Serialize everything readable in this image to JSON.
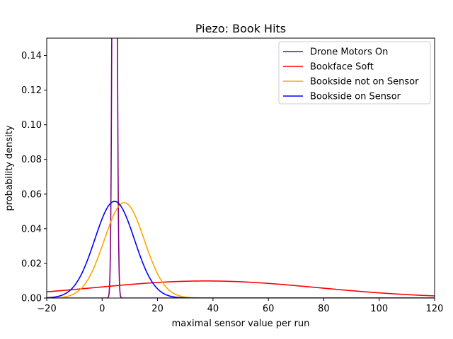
{
  "chart_data": {
    "type": "line",
    "title": "Piezo: Book Hits",
    "xlabel": "maximal sensor value per run",
    "ylabel": "probability density",
    "xlim": [
      -20,
      120
    ],
    "ylim": [
      0,
      0.15
    ],
    "xticks": [
      -20,
      0,
      20,
      40,
      60,
      80,
      100,
      120
    ],
    "xtick_labels": [
      "−20",
      "0",
      "20",
      "40",
      "60",
      "80",
      "100",
      "120"
    ],
    "yticks": [
      0,
      0.02,
      0.04,
      0.06,
      0.08,
      0.1,
      0.12,
      0.14
    ],
    "ytick_labels": [
      "0.00",
      "0.02",
      "0.04",
      "0.06",
      "0.08",
      "0.10",
      "0.12",
      "0.14"
    ],
    "grid": false,
    "legend_position": "top-right",
    "curve": "normal density",
    "series": [
      {
        "name": "Drone Motors On",
        "color": "#800080",
        "mean": 4.5,
        "std": 0.6
      },
      {
        "name": "Bookface Soft",
        "color": "#ff0000",
        "mean": 37.5,
        "std": 40.5
      },
      {
        "name": "Bookside not on Sensor",
        "color": "#ffa500",
        "mean": 8,
        "std": 7.25
      },
      {
        "name": "Bookside on Sensor",
        "color": "#0000ff",
        "mean": 4.5,
        "std": 7.15
      }
    ]
  }
}
